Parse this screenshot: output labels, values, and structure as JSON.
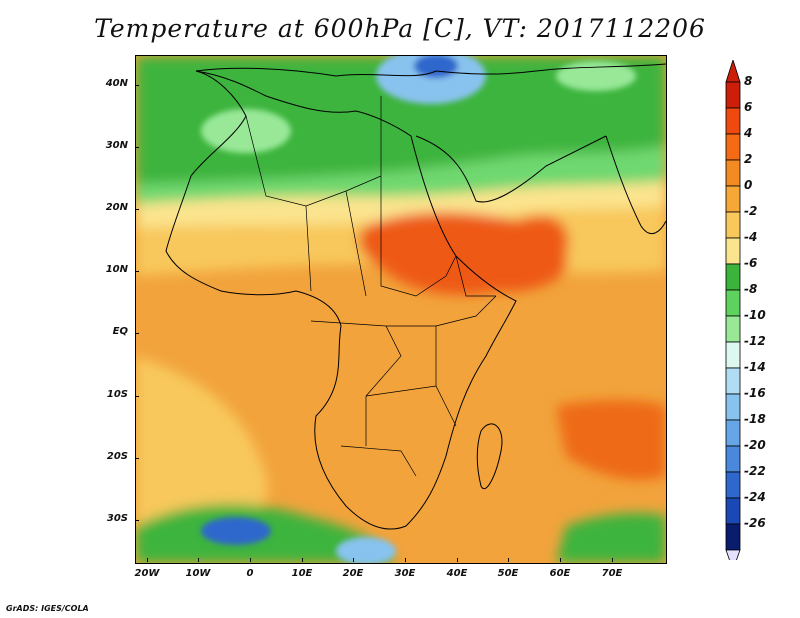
{
  "title": "Temperature at 600hPa [C], VT: 2017112206",
  "credit": "GrADS: IGES/COLA",
  "map": {
    "lat_labels": [
      "40N",
      "30N",
      "20N",
      "10N",
      "EQ",
      "10S",
      "20S",
      "30S"
    ],
    "lon_labels": [
      "20W",
      "10W",
      "0",
      "10E",
      "20E",
      "30E",
      "40E",
      "50E",
      "60E",
      "70E"
    ]
  },
  "colorbar": {
    "labels": [
      "8",
      "6",
      "4",
      "2",
      "0",
      "-2",
      "-4",
      "-6",
      "-8",
      "-10",
      "-12",
      "-14",
      "-16",
      "-18",
      "-20",
      "-22",
      "-24",
      "-26"
    ],
    "colors": [
      "#cc1e08",
      "#ee4a10",
      "#f56a14",
      "#f48a22",
      "#f5a838",
      "#f8c85c",
      "#fbe48e",
      "#3cb43c",
      "#5ed25e",
      "#98e898",
      "#ddf8f0",
      "#b0dcf4",
      "#88c2ee",
      "#66a6e6",
      "#4a88dc",
      "#2e68cc",
      "#1a48b4",
      "#0a1c6e"
    ]
  }
}
